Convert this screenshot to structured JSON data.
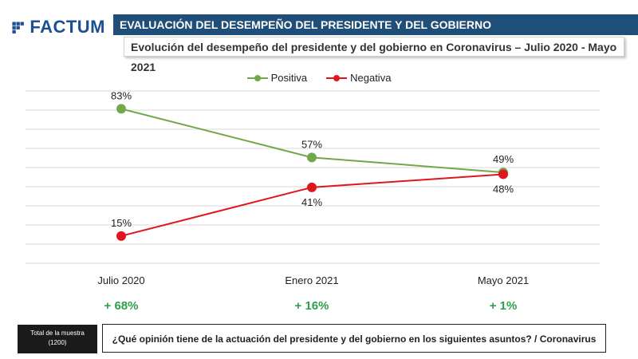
{
  "brand": {
    "logo_text": "FACTUM"
  },
  "header": {
    "title": "EVALUACIÓN DEL DESEMPEÑO DEL PRESIDENTE Y DEL GOBIERNO",
    "subtitle": "Evolución del desempeño del presidente y del gobierno en Coronavirus – Julio 2020  - Mayo 2021"
  },
  "chart_data": {
    "type": "line",
    "categories": [
      "Julio 2020",
      "Enero 2021",
      "Mayo 2021"
    ],
    "series": [
      {
        "name": "Positiva",
        "values": [
          83,
          57,
          49
        ],
        "labels": [
          "83%",
          "57%",
          "49%"
        ],
        "color": "#70a84a"
      },
      {
        "name": "Negativa",
        "values": [
          15,
          41,
          48
        ],
        "labels": [
          "15%",
          "41%",
          "48%"
        ],
        "color": "#e0161e"
      }
    ],
    "ylim": [
      0,
      100
    ],
    "grid": true,
    "legend_position": "top-center"
  },
  "differences": [
    "+ 68%",
    "+ 16%",
    "+ 1%"
  ],
  "footer": {
    "sample_label": "Total de la muestra",
    "sample_size": "(1200)",
    "question": "¿Qué opinión tiene de la actuación del presidente y del gobierno en los siguientes asuntos? / Coronavirus"
  }
}
